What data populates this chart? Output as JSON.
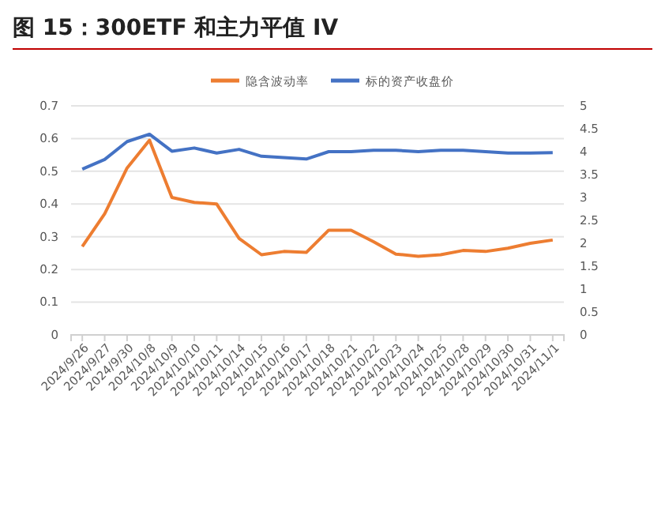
{
  "chart_data": {
    "type": "line",
    "title": "图 15：300ETF 和主力平值 IV",
    "categories": [
      "2024/9/26",
      "2024/9/27",
      "2024/9/30",
      "2024/10/8",
      "2024/10/9",
      "2024/10/10",
      "2024/10/11",
      "2024/10/14",
      "2024/10/15",
      "2024/10/16",
      "2024/10/17",
      "2024/10/18",
      "2024/10/21",
      "2024/10/22",
      "2024/10/23",
      "2024/10/24",
      "2024/10/25",
      "2024/10/28",
      "2024/10/29",
      "2024/10/30",
      "2024/10/31",
      "2024/11/1"
    ],
    "series": [
      {
        "name": "隐含波动率",
        "color": "#ed7d31",
        "values": [
          0.27,
          0.37,
          0.51,
          0.595,
          0.42,
          0.405,
          0.4,
          0.295,
          0.245,
          0.255,
          0.252,
          0.32,
          0.32,
          0.285,
          0.247,
          0.24,
          0.245,
          0.258,
          0.255,
          0.265,
          0.28,
          0.29
        ]
      },
      {
        "name": "标的资产收盘价",
        "color": "#4472c4",
        "axis": "y2",
        "values": [
          3.62,
          3.83,
          4.22,
          4.38,
          4.01,
          4.08,
          3.97,
          4.05,
          3.9,
          3.87,
          3.84,
          4.0,
          4.0,
          4.03,
          4.03,
          4.0,
          4.03,
          4.03,
          4.0,
          3.97,
          3.97,
          3.98
        ]
      }
    ],
    "ylim": [
      0,
      0.7
    ],
    "yticks": [
      0,
      0.1,
      0.2,
      0.3,
      0.4,
      0.5,
      0.6,
      0.7
    ],
    "y2lim": [
      0,
      5
    ],
    "y2ticks": [
      0,
      0.5,
      1,
      1.5,
      2,
      2.5,
      3,
      3.5,
      4,
      4.5,
      5
    ],
    "grid": "y",
    "legend": "top",
    "marker": "none",
    "line_style": "solid"
  }
}
